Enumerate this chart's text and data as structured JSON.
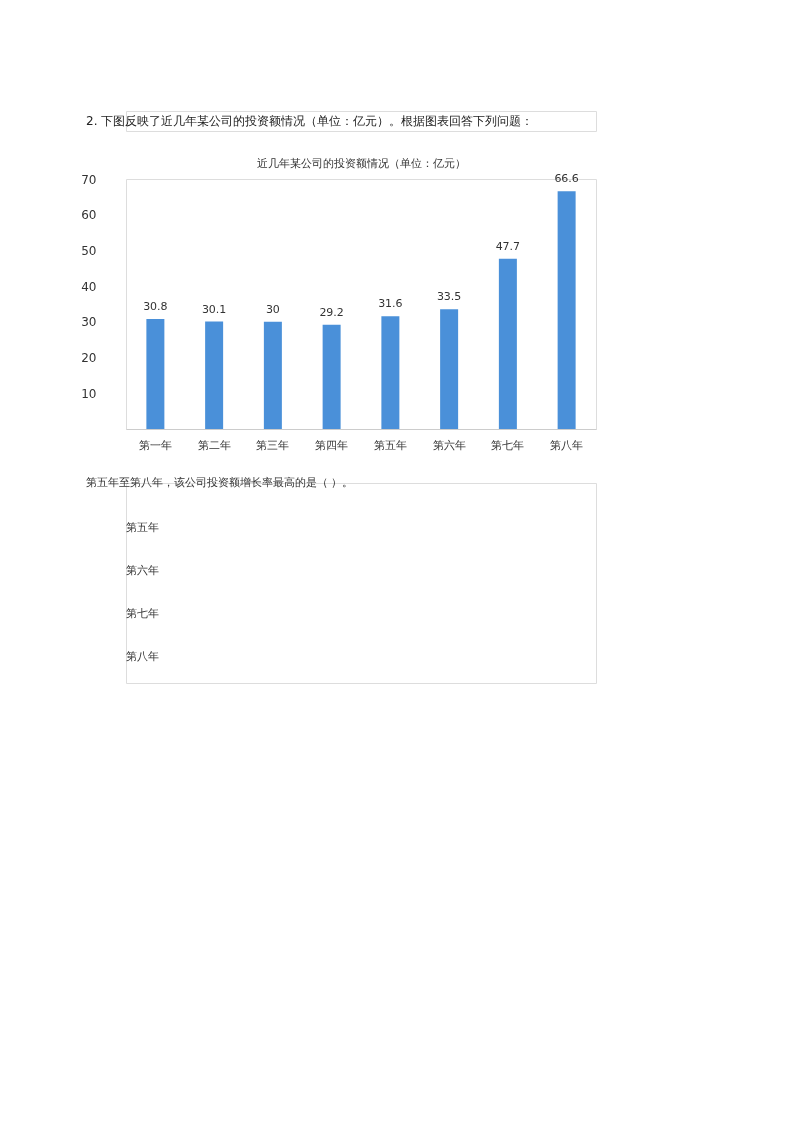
{
  "chart_data": {
    "type": "bar",
    "title": "近几年某公司的投资额情况（单位：亿元）",
    "categories": [
      "第一年",
      "第二年",
      "第三年",
      "第四年",
      "第五年",
      "第六年",
      "第七年",
      "第八年"
    ],
    "values": [
      30.8,
      30.1,
      30,
      29.2,
      31.6,
      33.5,
      47.7,
      66.6
    ],
    "color": "#4a90d9",
    "ylim": [
      0,
      70
    ],
    "yticks": [
      10,
      20,
      30,
      40,
      50,
      60,
      70
    ],
    "grid": false,
    "data_labels": true,
    "annotations": [
      "2. 下图反映了近几年某公司的投资额情况（单位：亿元）。根据图表回答下列问题：",
      "第五年至第八年，该公司投资额增长率最高的是（ ）。",
      "第五年",
      "第六年",
      "第七年",
      "第八年"
    ]
  }
}
